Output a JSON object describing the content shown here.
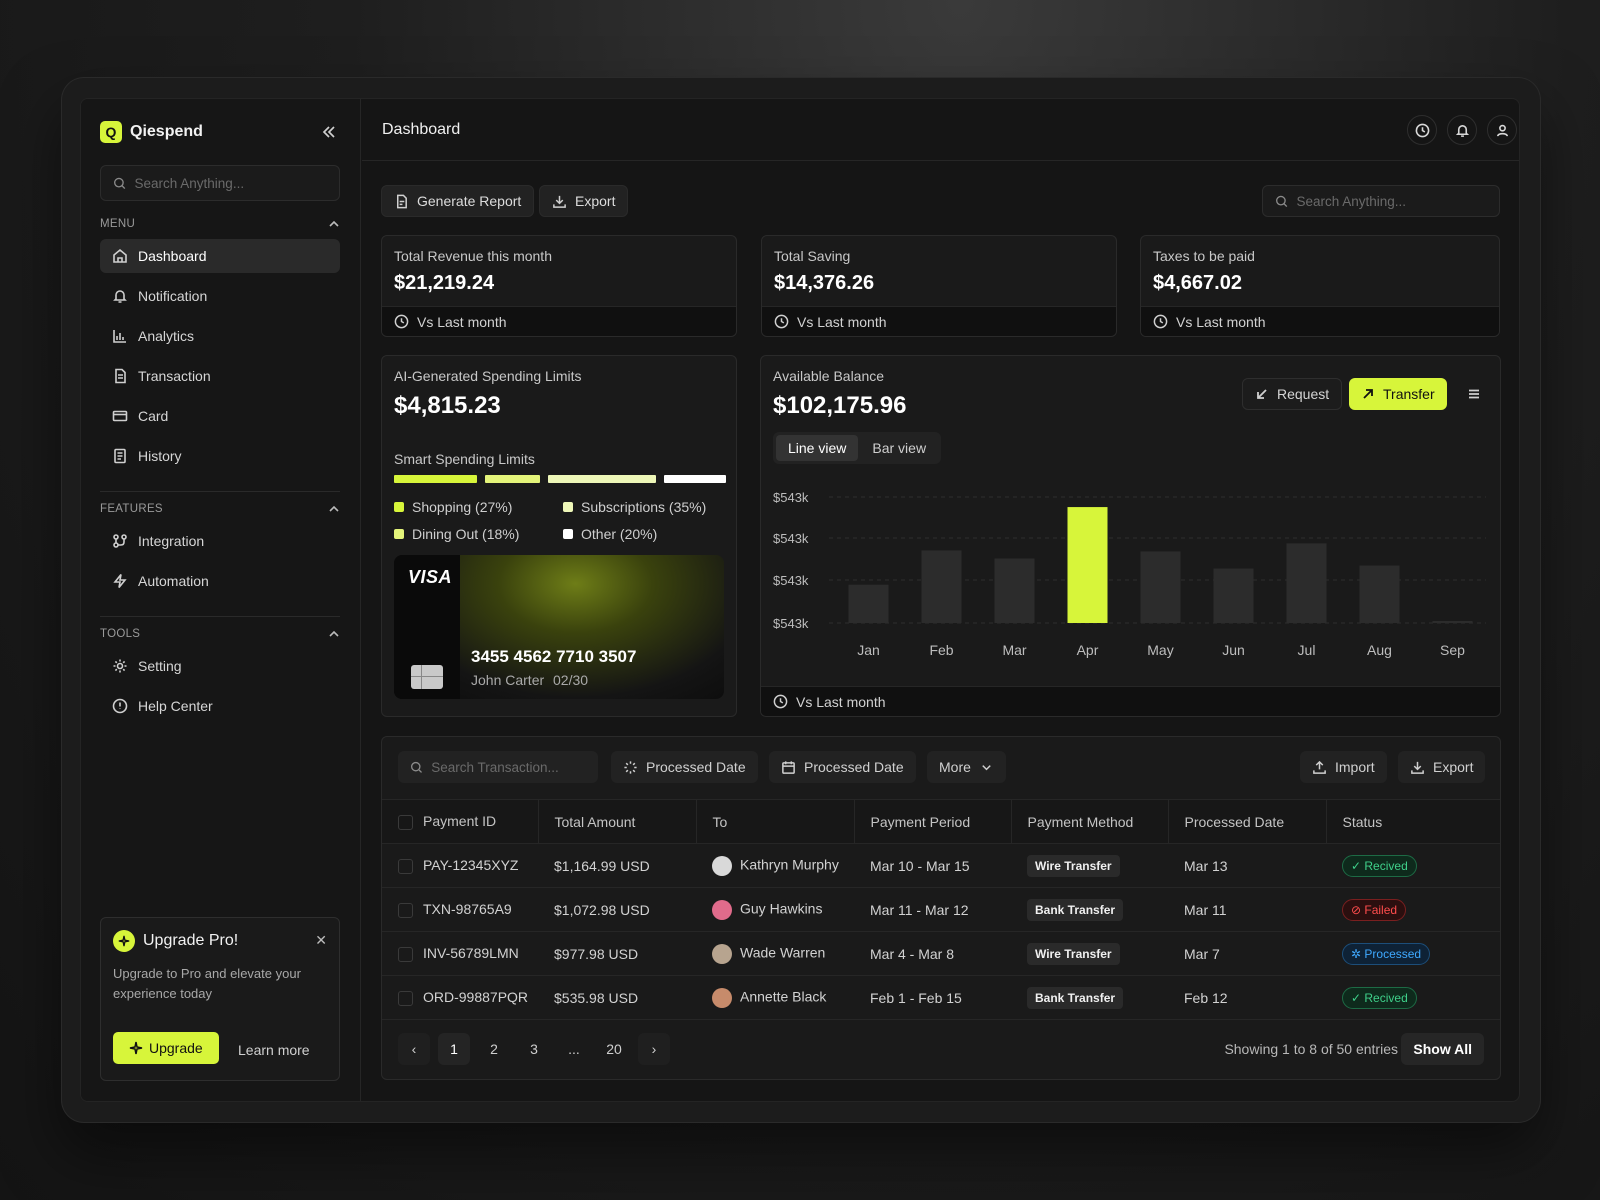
{
  "brand": {
    "name": "Qiespend",
    "logo_letter": "Q",
    "accent": "#d7f53a"
  },
  "sidebar": {
    "search_placeholder": "Search Anything...",
    "menu_title": "MENU",
    "menu": [
      {
        "label": "Dashboard",
        "icon": "home-icon",
        "active": true
      },
      {
        "label": "Notification",
        "icon": "bell-icon"
      },
      {
        "label": "Analytics",
        "icon": "analytics-icon"
      },
      {
        "label": "Transaction",
        "icon": "document-icon"
      },
      {
        "label": "Card",
        "icon": "card-icon"
      },
      {
        "label": "History",
        "icon": "history-icon"
      }
    ],
    "features_title": "FEATURES",
    "features": [
      {
        "label": "Integration",
        "icon": "integration-icon"
      },
      {
        "label": "Automation",
        "icon": "bolt-icon"
      }
    ],
    "tools_title": "TOOLS",
    "tools": [
      {
        "label": "Setting",
        "icon": "gear-icon"
      },
      {
        "label": "Help Center",
        "icon": "help-icon"
      }
    ],
    "upgrade": {
      "title": "Upgrade Pro!",
      "text": "Upgrade to Pro and elevate your experience today",
      "button": "Upgrade",
      "link": "Learn more"
    }
  },
  "header": {
    "title": "Dashboard"
  },
  "toolbar": {
    "generate": "Generate Report",
    "export": "Export",
    "search_placeholder": "Search Anything..."
  },
  "stats": [
    {
      "label": "Total Revenue this month",
      "value": "$21,219.24",
      "foot": "Vs Last month"
    },
    {
      "label": "Total Saving",
      "value": "$14,376.26",
      "foot": "Vs Last month"
    },
    {
      "label": "Taxes to be paid",
      "value": "$4,667.02",
      "foot": "Vs Last month"
    }
  ],
  "limits": {
    "label": "AI-Generated Spending Limits",
    "value": "$4,815.23",
    "smart_label": "Smart Spending Limits",
    "categories": [
      {
        "label": "Shopping (27%)",
        "pct": 27,
        "color": "#d7f53a"
      },
      {
        "label": "Subscriptions (35%)",
        "pct": 35,
        "color": "#eef7b8"
      },
      {
        "label": "Dining Out (18%)",
        "pct": 18,
        "color": "#e4f47a"
      },
      {
        "label": "Other (20%)",
        "pct": 20,
        "color": "#ffffff"
      }
    ],
    "card": {
      "brand": "VISA",
      "number": "3455 4562 7710 3507",
      "holder": "John Carter",
      "expiry": "02/30"
    }
  },
  "balance": {
    "label": "Available Balance",
    "value": "$102,175.96",
    "request": "Request",
    "transfer": "Transfer",
    "views": [
      "Line view",
      "Bar view"
    ],
    "foot": "Vs Last month"
  },
  "chart_data": {
    "type": "bar",
    "categories": [
      "Jan",
      "Feb",
      "Mar",
      "Apr",
      "May",
      "Jun",
      "Jul",
      "Aug",
      "Sep"
    ],
    "values": [
      38,
      72,
      64,
      115,
      71,
      54,
      79,
      57,
      2
    ],
    "highlight": "Apr",
    "y_tick_labels": [
      "$543k",
      "$543k",
      "$543k",
      "$543k"
    ],
    "ylim": [
      0,
      125
    ],
    "grid": true
  },
  "transactions": {
    "search_placeholder": "Search Transaction...",
    "filter1": "Processed Date",
    "filter2": "Processed Date",
    "more": "More",
    "import": "Import",
    "export": "Export",
    "columns": [
      "Payment ID",
      "Total Amount",
      "To",
      "Payment Period",
      "Payment Method",
      "Processed Date",
      "Status"
    ],
    "rows": [
      {
        "id": "PAY-12345XYZ",
        "amount": "$1,164.99 USD",
        "to": "Kathryn Murphy",
        "period": "Mar 10 -  Mar 15",
        "method": "Wire Transfer",
        "date": "Mar 13",
        "status": "Recived",
        "status_kind": "ok"
      },
      {
        "id": "TXN-98765A9",
        "amount": "$1,072.98 USD",
        "to": "Guy Hawkins",
        "period": "Mar 11 -  Mar 12",
        "method": "Bank Transfer",
        "date": "Mar 11",
        "status": "Failed",
        "status_kind": "fail"
      },
      {
        "id": "INV-56789LMN",
        "amount": "$977.98 USD",
        "to": "Wade Warren",
        "period": "Mar 4 -  Mar 8",
        "method": "Wire Transfer",
        "date": "Mar 7",
        "status": "Processed",
        "status_kind": "proc"
      },
      {
        "id": "ORD-99887PQR",
        "amount": "$535.98 USD",
        "to": "Annette Black",
        "period": "Feb 1 - Feb 15",
        "method": "Bank Transfer",
        "date": "Feb 12",
        "status": "Recived",
        "status_kind": "ok"
      }
    ],
    "pages": [
      "1",
      "2",
      "3",
      "...",
      "20"
    ],
    "showing": "Showing 1 to 8 of 50 entries",
    "show_all": "Show All"
  }
}
